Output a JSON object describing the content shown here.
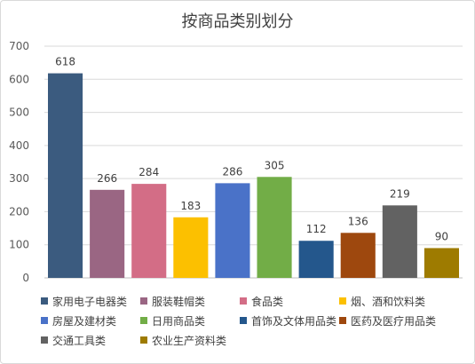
{
  "chart_data": {
    "type": "bar",
    "title": "按商品类别划分",
    "categories": [
      "家用电子电器类",
      "服装鞋帽类",
      "食品类",
      "烟、酒和饮料类",
      "房屋及建材类",
      "日用商品类",
      "首饰及文体用品类",
      "医药及医疗用品类",
      "交通工具类",
      "农业生产资料类"
    ],
    "values": [
      618,
      266,
      284,
      183,
      286,
      305,
      112,
      136,
      219,
      90
    ],
    "colors": [
      "#3b5b7f",
      "#9a6683",
      "#d36d86",
      "#fcc000",
      "#4a72c8",
      "#72ad47",
      "#24578c",
      "#9e480e",
      "#626262",
      "#9e7b00"
    ],
    "ylim": [
      0,
      700
    ],
    "yticks": [
      0,
      100,
      200,
      300,
      400,
      500,
      600,
      700
    ],
    "grid": true,
    "legend_position": "bottom",
    "xlabel": "",
    "ylabel": ""
  }
}
